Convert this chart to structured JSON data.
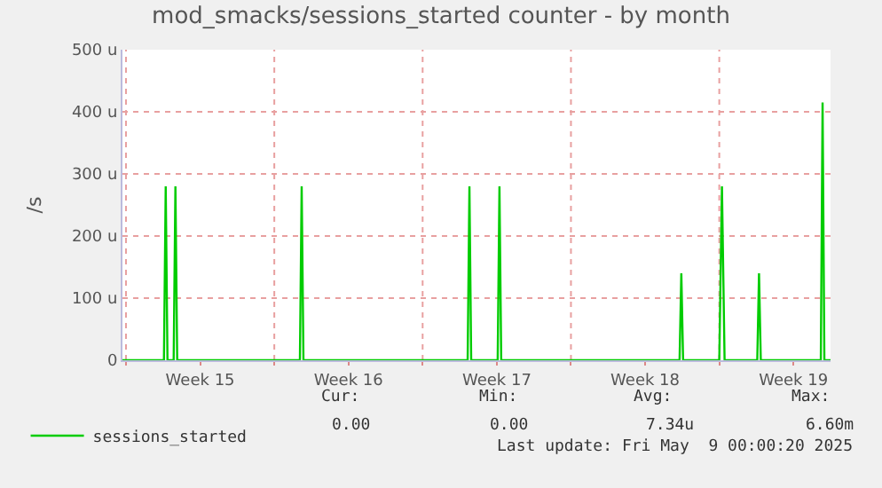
{
  "chart_data": {
    "type": "line",
    "title": "mod_smacks/sessions_started counter - by month",
    "ylabel": "/s",
    "x": [
      "2025-04-06T20:00",
      "2025-04-08T19:00",
      "2025-04-08T21:00",
      "2025-04-08T23:00",
      "2025-04-09T06:00",
      "2025-04-09T08:00",
      "2025-04-09T10:00",
      "2025-04-15T05:00",
      "2025-04-15T07:00",
      "2025-04-15T09:00",
      "2025-04-23T03:00",
      "2025-04-23T05:00",
      "2025-04-23T07:00",
      "2025-04-24T13:00",
      "2025-04-24T15:00",
      "2025-04-24T17:00",
      "2025-05-03T03:00",
      "2025-05-03T05:00",
      "2025-05-03T07:00",
      "2025-05-05T00:00",
      "2025-05-05T03:00",
      "2025-05-05T06:00",
      "2025-05-06T19:00",
      "2025-05-06T21:00",
      "2025-05-06T23:00",
      "2025-05-09T19:00",
      "2025-05-09T21:00",
      "2025-05-09T23:00",
      "2025-05-10T06:00"
    ],
    "series": [
      {
        "name": "sessions_started",
        "color": "#00cc00",
        "values": [
          0,
          0,
          280,
          0,
          0,
          280,
          0,
          0,
          280,
          0,
          0,
          280,
          0,
          0,
          280,
          0,
          0,
          140,
          0,
          0,
          280,
          0,
          0,
          140,
          0,
          0,
          415,
          0,
          0
        ]
      }
    ],
    "xlim": [
      "2025-04-06T20:00",
      "2025-05-10T06:00"
    ],
    "xticks": [
      {
        "value": "2025-04-07",
        "label": null
      },
      {
        "value": "2025-04-10T12:00",
        "label": "Week 15"
      },
      {
        "value": "2025-04-14",
        "label": null
      },
      {
        "value": "2025-04-17T12:00",
        "label": "Week 16"
      },
      {
        "value": "2025-04-21",
        "label": null
      },
      {
        "value": "2025-04-24T12:00",
        "label": "Week 17"
      },
      {
        "value": "2025-04-28",
        "label": null
      },
      {
        "value": "2025-05-01T12:00",
        "label": "Week 18"
      },
      {
        "value": "2025-05-05",
        "label": null
      },
      {
        "value": "2025-05-08T12:00",
        "label": "Week 19"
      }
    ],
    "ylim": [
      0,
      500
    ],
    "yticks": [
      0,
      {
        "value": 100,
        "label": "100 u"
      },
      {
        "value": 200,
        "label": "200 u"
      },
      {
        "value": 300,
        "label": "300 u"
      },
      {
        "value": 400,
        "label": "400 u"
      },
      {
        "value": 500,
        "label": "500 u"
      }
    ],
    "grid": true,
    "legend": "bottom left",
    "marker": "none",
    "line_style": "solid",
    "annotations": [
      "Cur:",
      "Min:",
      "Avg:",
      "Max:",
      "0.00",
      "0.00",
      "7.34u",
      "6.60m",
      "Last update: Fri May  9 00:00:20 2025"
    ]
  }
}
